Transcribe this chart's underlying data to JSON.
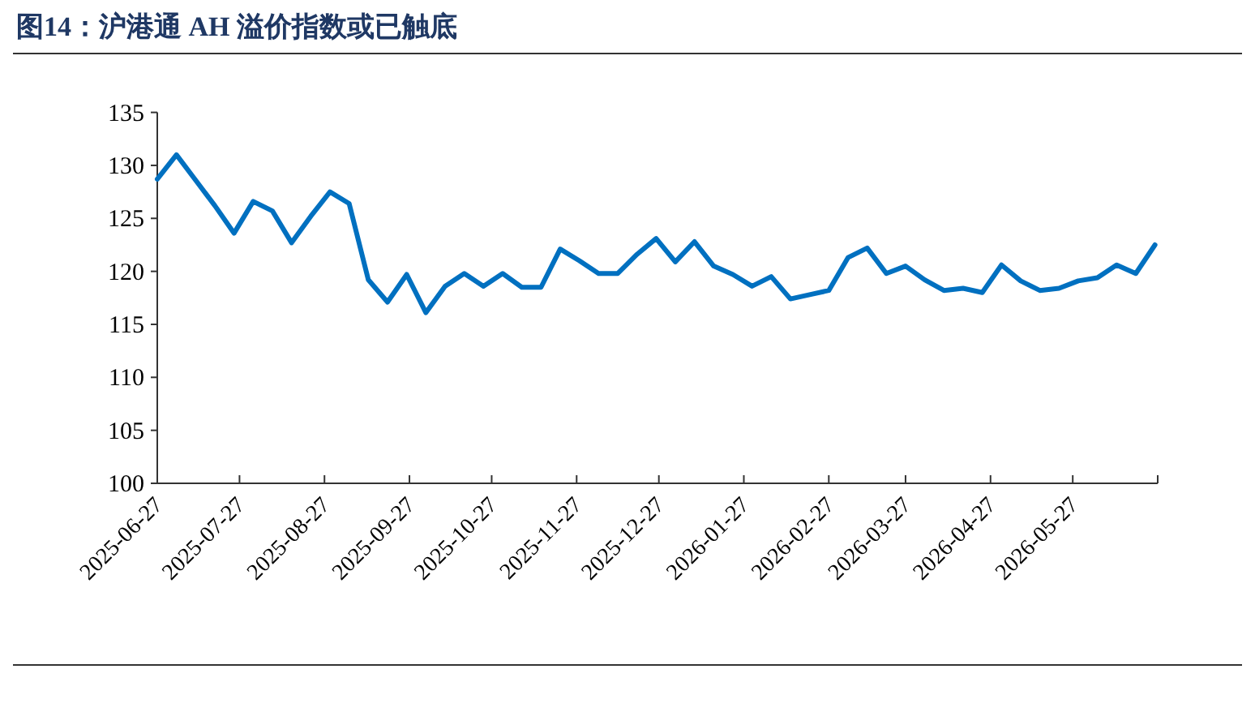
{
  "chart_data": {
    "type": "line",
    "title": "图14：沪港通 AH 溢价指数或已触底",
    "x": [
      "2025-06-27",
      "2025-07-04",
      "2025-07-11",
      "2025-07-18",
      "2025-07-25",
      "2025-08-01",
      "2025-08-08",
      "2025-08-15",
      "2025-08-22",
      "2025-08-29",
      "2025-09-05",
      "2025-09-12",
      "2025-09-19",
      "2025-09-26",
      "2025-10-03",
      "2025-10-10",
      "2025-10-17",
      "2025-10-24",
      "2025-10-31",
      "2025-11-07",
      "2025-11-14",
      "2025-11-21",
      "2025-11-28",
      "2025-12-05",
      "2025-12-12",
      "2025-12-19",
      "2025-12-26",
      "2026-01-02",
      "2026-01-09",
      "2026-01-16",
      "2026-01-23",
      "2026-01-30",
      "2026-02-06",
      "2026-02-13",
      "2026-02-20",
      "2026-02-27",
      "2026-03-06",
      "2026-03-13",
      "2026-03-20",
      "2026-03-27",
      "2026-04-03",
      "2026-04-10",
      "2026-04-17",
      "2026-04-24",
      "2026-05-01",
      "2026-05-08",
      "2026-05-15",
      "2026-05-22",
      "2026-05-29",
      "2026-06-05",
      "2026-06-12",
      "2026-06-19",
      "2026-06-26"
    ],
    "series": [
      {
        "color": "#0070c0",
        "values": [
          128.7,
          131.0,
          128.6,
          126.2,
          123.6,
          126.6,
          125.7,
          122.7,
          125.2,
          127.5,
          126.4,
          119.2,
          117.1,
          119.7,
          116.1,
          118.6,
          119.8,
          118.6,
          119.8,
          118.5,
          118.5,
          122.1,
          121.0,
          119.8,
          119.8,
          121.6,
          123.1,
          120.9,
          122.8,
          120.5,
          119.7,
          118.6,
          119.5,
          117.4,
          117.8,
          118.2,
          121.3,
          122.2,
          119.8,
          120.5,
          119.2,
          118.2,
          118.4,
          118.0,
          120.6,
          119.1,
          118.2,
          118.4,
          119.1,
          119.4,
          120.6,
          119.8,
          122.5
        ]
      }
    ],
    "xlim": [
      "2025-06-27",
      "2026-06-27"
    ],
    "xticks": [
      "2025-06-27",
      "2025-07-27",
      "2025-08-27",
      "2025-09-27",
      "2025-10-27",
      "2025-11-27",
      "2025-12-27",
      "2026-01-27",
      "2026-02-27",
      "2026-03-27",
      "2026-04-27",
      "2026-05-27",
      {
        "value": "2026-06-27",
        "label": null
      }
    ],
    "ylim": [
      100,
      135
    ],
    "yticks": [
      100,
      105,
      110,
      115,
      120,
      125,
      130,
      135
    ]
  }
}
